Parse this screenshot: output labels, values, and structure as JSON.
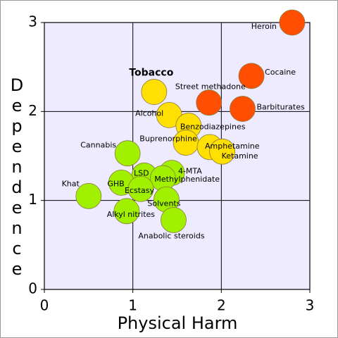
{
  "chart_data": {
    "type": "scatter",
    "x_label": "Physical Harm",
    "y_label": "Dependence",
    "xlim": [
      0,
      3
    ],
    "ylim": [
      0,
      3
    ],
    "xticks": [
      0,
      1,
      2,
      3
    ],
    "yticks": [
      0,
      1,
      2,
      3
    ],
    "grid": true,
    "background": "#eeeaff",
    "points": [
      {
        "label": "Heroin",
        "x": 2.8,
        "y": 3.0,
        "color": "#ff4e00"
      },
      {
        "label": "Cocaine",
        "x": 2.34,
        "y": 2.4,
        "color": "#ff4e00"
      },
      {
        "label": "Street methadone",
        "x": 1.86,
        "y": 2.1,
        "color": "#ff4e00"
      },
      {
        "label": "Barbiturates",
        "x": 2.24,
        "y": 2.03,
        "color": "#ff4e00"
      },
      {
        "label": "Tobacco",
        "x": 1.24,
        "y": 2.22,
        "color": "#ffe000"
      },
      {
        "label": "Alcohol",
        "x": 1.41,
        "y": 1.96,
        "color": "#ffe000"
      },
      {
        "label": "Benzodiazepines",
        "x": 1.63,
        "y": 1.84,
        "color": "#ffe000"
      },
      {
        "label": "Buprenorphine",
        "x": 1.6,
        "y": 1.65,
        "color": "#ffe000"
      },
      {
        "label": "Amphetamine",
        "x": 1.87,
        "y": 1.6,
        "color": "#ffe000"
      },
      {
        "label": "Ketamine",
        "x": 2.01,
        "y": 1.55,
        "color": "#ffe000"
      },
      {
        "label": "Cannabis",
        "x": 0.94,
        "y": 1.53,
        "color": "#a0f000"
      },
      {
        "label": "4-MTA",
        "x": 1.44,
        "y": 1.31,
        "color": "#a0f000"
      },
      {
        "label": "LSD",
        "x": 1.13,
        "y": 1.28,
        "color": "#a0f000"
      },
      {
        "label": "Methylphenidate",
        "x": 1.34,
        "y": 1.25,
        "color": "#a0f000"
      },
      {
        "label": "GHB",
        "x": 0.87,
        "y": 1.2,
        "color": "#a0f000"
      },
      {
        "label": "Ecstasy",
        "x": 1.09,
        "y": 1.13,
        "color": "#a0f000"
      },
      {
        "label": "Khat",
        "x": 0.5,
        "y": 1.05,
        "color": "#a0f000"
      },
      {
        "label": "Solvents",
        "x": 1.38,
        "y": 1.01,
        "color": "#a0f000"
      },
      {
        "label": "Alkyl nitrites",
        "x": 0.93,
        "y": 0.88,
        "color": "#a0f000"
      },
      {
        "label": "Anabolic steroids",
        "x": 1.46,
        "y": 0.78,
        "color": "#a0f000"
      }
    ]
  }
}
